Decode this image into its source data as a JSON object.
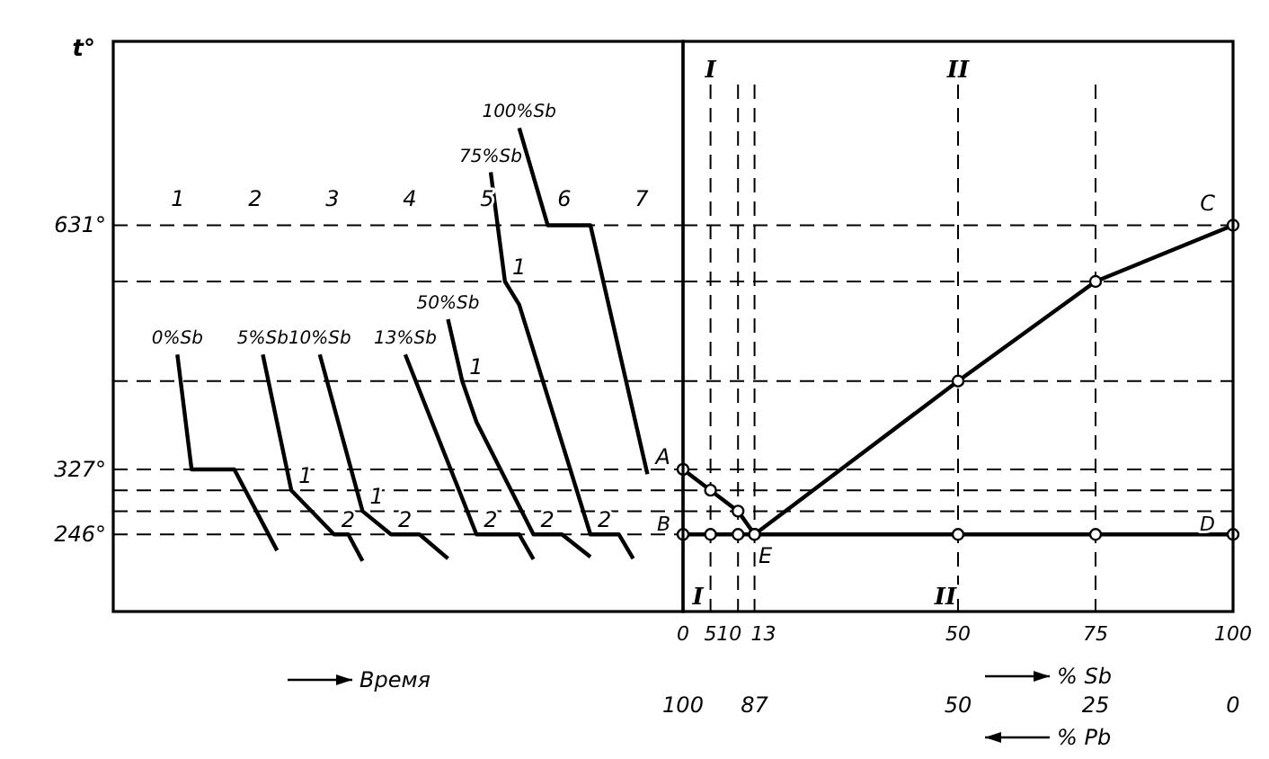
{
  "chart_data": [
    {
      "type": "line",
      "ylabel": "t°",
      "xlabel": "Время",
      "categories": [
        null,
        null,
        null,
        null,
        null,
        null,
        null,
        null,
        null,
        null,
        null,
        null,
        null,
        null,
        null,
        null,
        null,
        null,
        null,
        null,
        null,
        null,
        null,
        null,
        null,
        null,
        null,
        null,
        null,
        null,
        null,
        null,
        null,
        null,
        null,
        null,
        null,
        null,
        null,
        null
      ],
      "ylim": [
        150,
        860
      ],
      "yticks": [
        {
          "value": 631,
          "label": "631°"
        },
        {
          "value": 327,
          "label": "327°"
        },
        {
          "value": 246,
          "label": "246°"
        }
      ],
      "marker": "none",
      "line_style": "solid",
      "series": [
        {
          "name": "0%Sb",
          "color": "#000000",
          "values": [
            null,
            null,
            null,
            null,
            470,
            327,
            null,
            null,
            327,
            null,
            null,
            226,
            null,
            null,
            null,
            null,
            null,
            null,
            null,
            null,
            null,
            null,
            null,
            null,
            null,
            null,
            null,
            null,
            null,
            null,
            null,
            null,
            null,
            null,
            null,
            null,
            null,
            null,
            null,
            null
          ]
        },
        {
          "name": "5%Sb",
          "color": "#000000",
          "values": [
            null,
            null,
            null,
            null,
            null,
            null,
            null,
            null,
            null,
            null,
            470,
            null,
            301,
            null,
            null,
            246,
            246,
            213,
            null,
            null,
            null,
            null,
            null,
            null,
            null,
            null,
            null,
            null,
            null,
            null,
            null,
            null,
            null,
            null,
            null,
            null,
            null,
            null,
            null,
            null
          ]
        },
        {
          "name": "10%Sb",
          "color": "#000000",
          "values": [
            null,
            null,
            null,
            null,
            null,
            null,
            null,
            null,
            null,
            null,
            null,
            null,
            null,
            null,
            470,
            null,
            null,
            275,
            null,
            246,
            null,
            246,
            null,
            216,
            null,
            null,
            null,
            null,
            null,
            null,
            null,
            null,
            null,
            null,
            null,
            null,
            null,
            null,
            null,
            null
          ]
        },
        {
          "name": "13%Sb",
          "color": "#000000",
          "values": [
            null,
            null,
            null,
            null,
            null,
            null,
            null,
            null,
            null,
            null,
            null,
            null,
            null,
            null,
            null,
            null,
            null,
            null,
            null,
            null,
            470,
            null,
            null,
            null,
            null,
            246,
            null,
            null,
            246,
            215,
            null,
            null,
            null,
            null,
            null,
            null,
            null,
            null,
            null,
            null
          ]
        },
        {
          "name": "50%Sb",
          "color": "#000000",
          "values": [
            null,
            null,
            null,
            null,
            null,
            null,
            null,
            null,
            null,
            null,
            null,
            null,
            null,
            null,
            null,
            null,
            null,
            null,
            null,
            null,
            null,
            null,
            null,
            514,
            437,
            386,
            null,
            null,
            null,
            246,
            null,
            246,
            null,
            218,
            null,
            null,
            null,
            null,
            null,
            null
          ]
        },
        {
          "name": "75%Sb",
          "color": "#000000",
          "values": [
            null,
            null,
            null,
            null,
            null,
            null,
            null,
            null,
            null,
            null,
            null,
            null,
            null,
            null,
            null,
            null,
            null,
            null,
            null,
            null,
            null,
            null,
            null,
            null,
            null,
            null,
            697,
            561,
            532,
            null,
            null,
            null,
            null,
            246,
            null,
            246,
            216,
            null,
            null,
            null
          ]
        },
        {
          "name": "100%Sb",
          "color": "#000000",
          "values": [
            null,
            null,
            null,
            null,
            null,
            null,
            null,
            null,
            null,
            null,
            null,
            null,
            null,
            null,
            null,
            null,
            null,
            null,
            null,
            null,
            null,
            null,
            null,
            null,
            null,
            null,
            null,
            null,
            752,
            null,
            631,
            null,
            null,
            631,
            null,
            null,
            null,
            321,
            null,
            null
          ]
        }
      ],
      "ref_lines": [
        {
          "axis": "y",
          "value": 631,
          "line_style": "dashed"
        },
        {
          "axis": "y",
          "value": 561,
          "line_style": "dashed"
        },
        {
          "axis": "y",
          "value": 437,
          "line_style": "dashed"
        },
        {
          "axis": "y",
          "value": 327,
          "line_style": "dashed"
        },
        {
          "axis": "y",
          "value": 301,
          "line_style": "dashed"
        },
        {
          "axis": "y",
          "value": 275,
          "line_style": "dashed"
        },
        {
          "axis": "y",
          "value": 246,
          "line_style": "dashed"
        }
      ],
      "annotations": [
        "1",
        "2",
        "3",
        "4",
        "5",
        "6",
        "7",
        {
          "text": "1",
          "y": 301
        },
        {
          "text": "2",
          "y": 246
        },
        {
          "text": "1",
          "y": 275
        },
        {
          "text": "2",
          "y": 246
        },
        {
          "text": "2",
          "y": 246
        },
        {
          "text": "1",
          "y": 437
        },
        {
          "text": "2",
          "y": 246
        },
        {
          "text": "1",
          "y": 561
        },
        {
          "text": "2",
          "y": 246
        }
      ]
    },
    {
      "type": "line",
      "xlabel": "% Sb",
      "x2label": "% Pb",
      "xlim": [
        0,
        100
      ],
      "xticks": [
        0,
        5,
        10,
        13,
        50,
        75,
        100
      ],
      "x2lim": [
        100,
        0
      ],
      "x2ticks": [
        100,
        87,
        50,
        25,
        0
      ],
      "ylim": [
        150,
        860
      ],
      "tick_labels": "x",
      "marker": "circle",
      "line_style": "solid",
      "series": [
        {
          "color": "#000000",
          "x": [
            0,
            5,
            10,
            13,
            50,
            75,
            100
          ],
          "values": [
            327,
            301,
            275,
            246,
            437,
            561,
            631
          ]
        },
        {
          "color": "#000000",
          "x": [
            0,
            5,
            10,
            13,
            50,
            75,
            100
          ],
          "values": [
            246,
            246,
            246,
            246,
            246,
            246,
            246
          ]
        }
      ],
      "ref_lines": [
        {
          "axis": "x",
          "value": 5,
          "label": "I",
          "line_style": "dashed"
        },
        {
          "axis": "x",
          "value": 10,
          "line_style": "dashed"
        },
        {
          "axis": "x",
          "value": 13,
          "line_style": "dashed"
        },
        {
          "axis": "x",
          "value": 50,
          "label": "II",
          "line_style": "dashed"
        },
        {
          "axis": "x",
          "value": 75,
          "line_style": "dashed"
        },
        {
          "axis": "y",
          "value": 631,
          "line_style": "dashed"
        },
        {
          "axis": "y",
          "value": 561,
          "line_style": "dashed"
        },
        {
          "axis": "y",
          "value": 437,
          "line_style": "dashed"
        },
        {
          "axis": "y",
          "value": 327,
          "line_style": "dashed"
        },
        {
          "axis": "y",
          "value": 301,
          "line_style": "dashed"
        },
        {
          "axis": "y",
          "value": 275,
          "line_style": "dashed"
        }
      ],
      "annotations": [
        {
          "text": "A",
          "x": 0,
          "y": 327
        },
        {
          "text": "B",
          "x": 0,
          "y": 246
        },
        {
          "text": "C",
          "x": 100,
          "y": 631
        },
        {
          "text": "D",
          "x": 100,
          "y": 246
        },
        {
          "text": "E",
          "x": 13,
          "y": 246
        }
      ]
    }
  ]
}
